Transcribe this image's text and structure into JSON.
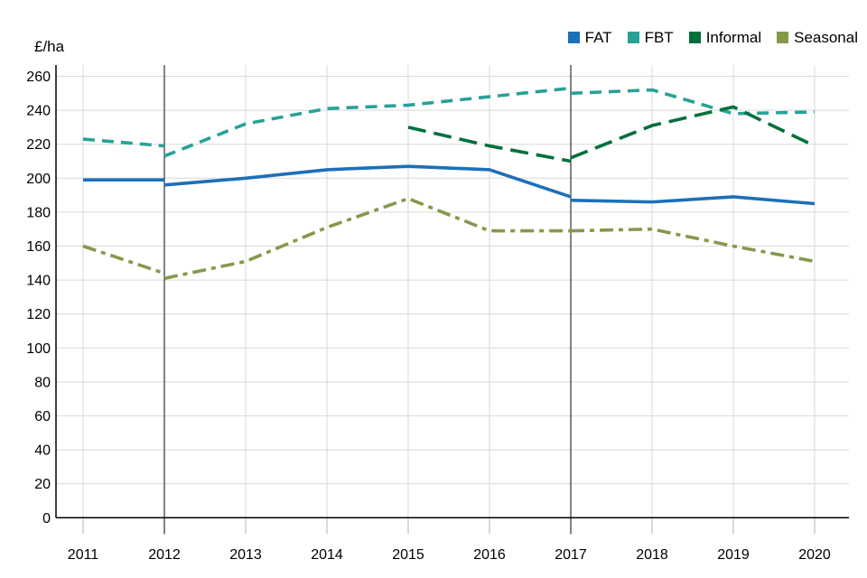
{
  "chart_data": {
    "type": "line",
    "title": "",
    "ylabel": "£/ha",
    "xlabel": "",
    "x": [
      2011,
      2012,
      2013,
      2014,
      2015,
      2016,
      2017,
      2018,
      2019,
      2020
    ],
    "ylim": [
      0,
      260
    ],
    "ytick_step": 20,
    "grid": true,
    "legend_position": "top-right",
    "series_break_lines_x": [
      2012,
      2017
    ],
    "series": [
      {
        "name": "FAT",
        "color": "#1d70b8",
        "line_style": "solid",
        "segments": [
          {
            "x": [
              2011,
              2012
            ],
            "y": [
              199,
              199
            ]
          },
          {
            "x": [
              2012,
              2013,
              2014,
              2015,
              2016,
              2017
            ],
            "y": [
              196,
              200,
              205,
              207,
              205,
              189
            ]
          },
          {
            "x": [
              2017,
              2018,
              2019,
              2020
            ],
            "y": [
              187,
              186,
              189,
              185
            ]
          }
        ]
      },
      {
        "name": "FBT",
        "color": "#28a197",
        "line_style": "dashed",
        "segments": [
          {
            "x": [
              2011,
              2012
            ],
            "y": [
              223,
              219
            ]
          },
          {
            "x": [
              2012,
              2013,
              2014,
              2015,
              2016,
              2017
            ],
            "y": [
              213,
              232,
              241,
              243,
              248,
              253
            ]
          },
          {
            "x": [
              2017,
              2018,
              2019,
              2020
            ],
            "y": [
              250,
              252,
              238,
              239
            ]
          }
        ]
      },
      {
        "name": "Informal",
        "color": "#00703c",
        "line_style": "long-dash",
        "segments": [
          {
            "x": [
              2015,
              2016,
              2017
            ],
            "y": [
              230,
              219,
              210
            ]
          },
          {
            "x": [
              2017,
              2018,
              2019,
              2020
            ],
            "y": [
              212,
              231,
              242,
              219
            ]
          }
        ]
      },
      {
        "name": "Seasonal",
        "color": "#85994b",
        "line_style": "dash-dot",
        "segments": [
          {
            "x": [
              2011,
              2012
            ],
            "y": [
              160,
              144
            ]
          },
          {
            "x": [
              2012,
              2013,
              2014,
              2015,
              2016,
              2017
            ],
            "y": [
              141,
              151,
              171,
              188,
              169,
              169
            ]
          },
          {
            "x": [
              2017,
              2018,
              2019,
              2020
            ],
            "y": [
              169,
              170,
              160,
              151
            ]
          }
        ]
      }
    ]
  }
}
